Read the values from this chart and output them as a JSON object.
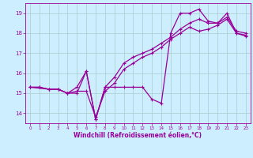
{
  "xlabel": "Windchill (Refroidissement éolien,°C)",
  "xlim": [
    -0.5,
    23.5
  ],
  "ylim": [
    13.5,
    19.5
  ],
  "yticks": [
    14,
    15,
    16,
    17,
    18,
    19
  ],
  "xticks": [
    0,
    1,
    2,
    3,
    4,
    5,
    6,
    7,
    8,
    9,
    10,
    11,
    12,
    13,
    14,
    15,
    16,
    17,
    18,
    19,
    20,
    21,
    22,
    23
  ],
  "bg_color": "#cceeff",
  "line_color": "#990099",
  "grid_color": "#aacccc",
  "line1_x": [
    0,
    1,
    2,
    3,
    4,
    5,
    6,
    7,
    8,
    9,
    10,
    11,
    12,
    13,
    14,
    15,
    16,
    17,
    18,
    19,
    20,
    21,
    22,
    23
  ],
  "line1_y": [
    15.3,
    15.3,
    15.2,
    15.2,
    15.0,
    15.0,
    16.1,
    13.7,
    15.3,
    15.3,
    15.3,
    15.3,
    15.3,
    14.7,
    14.5,
    18.0,
    19.0,
    19.0,
    19.2,
    18.6,
    18.5,
    19.0,
    18.0,
    17.9
  ],
  "line2_x": [
    0,
    2,
    3,
    4,
    5,
    6,
    7,
    8,
    9,
    10,
    11,
    12,
    13,
    14,
    15,
    16,
    17,
    18,
    19,
    20,
    21,
    22,
    23
  ],
  "line2_y": [
    15.3,
    15.2,
    15.2,
    15.0,
    15.3,
    16.1,
    13.7,
    15.3,
    15.8,
    16.5,
    16.8,
    17.0,
    17.2,
    17.5,
    17.8,
    18.2,
    18.5,
    18.7,
    18.5,
    18.5,
    18.8,
    18.1,
    18.0
  ],
  "line3_x": [
    0,
    1,
    2,
    3,
    4,
    5,
    6,
    7,
    8,
    9,
    10,
    11,
    12,
    13,
    14,
    15,
    16,
    17,
    18,
    19,
    20,
    21,
    22,
    23
  ],
  "line3_y": [
    15.3,
    15.3,
    15.2,
    15.2,
    15.0,
    15.1,
    15.1,
    13.8,
    15.1,
    15.5,
    16.2,
    16.5,
    16.8,
    17.0,
    17.3,
    17.7,
    18.0,
    18.3,
    18.1,
    18.2,
    18.4,
    18.7,
    18.0,
    17.85
  ]
}
